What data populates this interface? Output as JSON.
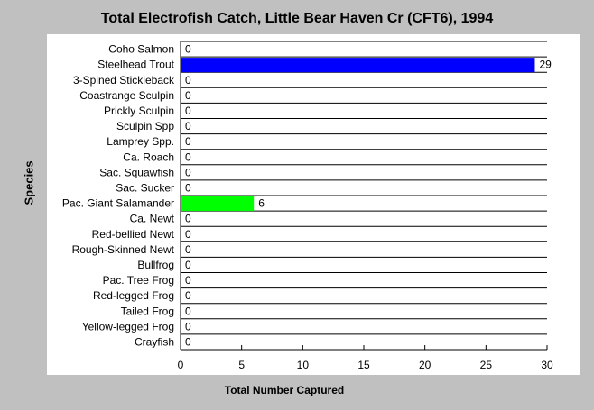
{
  "chart_data": {
    "type": "bar",
    "orientation": "horizontal",
    "title": "Total Electrofish Catch, Little Bear Haven Cr (CFT6), 1994",
    "xlabel": "Total Number Captured",
    "ylabel": "Species",
    "xlim": [
      0,
      30
    ],
    "xticks": [
      0,
      5,
      10,
      15,
      20,
      25,
      30
    ],
    "grid": "horizontal lines between categories",
    "categories": [
      "Coho Salmon",
      "Steelhead Trout",
      "3-Spined Stickleback",
      "Coastrange Sculpin",
      "Prickly Sculpin",
      "Sculpin Spp",
      "Lamprey Spp.",
      "Ca. Roach",
      "Sac. Squawfish",
      "Sac. Sucker",
      "Pac. Giant Salamander",
      "Ca. Newt",
      "Red-bellied Newt",
      "Rough-Skinned Newt",
      "Bullfrog",
      "Pac. Tree Frog",
      "Red-legged Frog",
      "Tailed Frog",
      "Yellow-legged Frog",
      "Crayfish"
    ],
    "values": [
      0,
      29,
      0,
      0,
      0,
      0,
      0,
      0,
      0,
      0,
      6,
      0,
      0,
      0,
      0,
      0,
      0,
      0,
      0,
      0
    ],
    "bar_colors": [
      "#0000ff",
      "#0000ff",
      "#0000ff",
      "#0000ff",
      "#0000ff",
      "#0000ff",
      "#0000ff",
      "#0000ff",
      "#0000ff",
      "#0000ff",
      "#00ff00",
      "#00ff00",
      "#00ff00",
      "#00ff00",
      "#00ff00",
      "#00ff00",
      "#00ff00",
      "#00ff00",
      "#00ff00",
      "#00ff00"
    ],
    "data_labels": true
  }
}
